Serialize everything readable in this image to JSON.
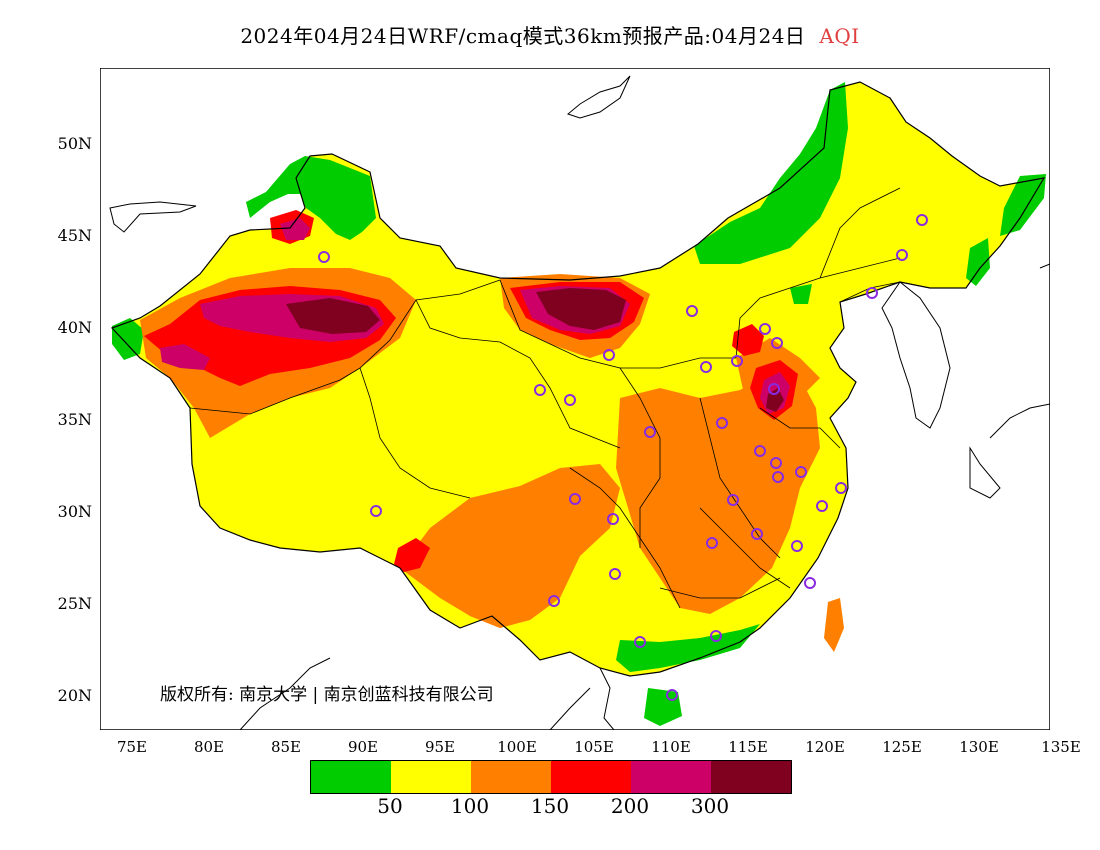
{
  "title": {
    "main": "2024年04月24日WRF/cmaq模式36km预报产品:04月24日",
    "variable": "AQI",
    "variable_color": "#e04040"
  },
  "axes": {
    "y_ticks": [
      "50N",
      "45N",
      "40N",
      "35N",
      "30N",
      "25N",
      "20N"
    ],
    "x_ticks": [
      "75E",
      "80E",
      "85E",
      "90E",
      "95E",
      "100E",
      "105E",
      "110E",
      "115E",
      "120E",
      "125E",
      "130E",
      "135E"
    ]
  },
  "copyright": "版权所有: 南京大学 | 南京创蓝科技有限公司",
  "legend": {
    "colors": [
      "#00cc00",
      "#ffff00",
      "#ff8000",
      "#ff0000",
      "#cc0066",
      "#800020"
    ],
    "labels": [
      "50",
      "100",
      "150",
      "200",
      "300"
    ]
  },
  "palette": {
    "green": "#00cc00",
    "yellow": "#ffff00",
    "orange": "#ff8000",
    "red": "#ff0000",
    "magenta": "#cc0066",
    "maroon": "#800020",
    "station_ring": "#8a2be2"
  }
}
